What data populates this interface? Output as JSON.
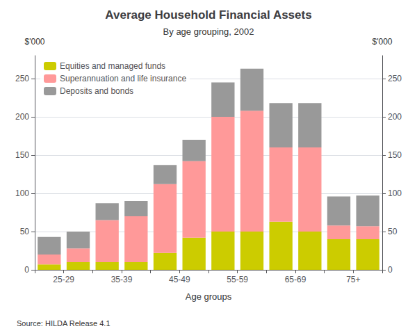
{
  "chart_data": {
    "type": "bar",
    "title": "Average Household Financial Assets",
    "subtitle": "By age grouping, 2002",
    "xlabel": "Age groups",
    "ylabel": "$'000",
    "y2label": "$'000",
    "annotations": [
      "Source: HILDA Release 4.1"
    ],
    "categories": [
      "25-29",
      null,
      "35-39",
      null,
      "45-49",
      null,
      "55-59",
      null,
      "65-69",
      null,
      "75+",
      null
    ],
    "series": [
      {
        "name": "Equities and managed funds",
        "color": "#cccc00",
        "values": [
          7,
          10,
          10,
          10,
          22,
          42,
          50,
          50,
          63,
          50,
          40,
          40
        ]
      },
      {
        "name": "Superannuation and life insurance",
        "color": "#ff9999",
        "values": [
          13,
          18,
          55,
          60,
          90,
          100,
          150,
          158,
          97,
          110,
          18,
          17
        ]
      },
      {
        "name": "Deposits and bonds",
        "color": "#999999",
        "values": [
          23,
          22,
          22,
          20,
          25,
          28,
          45,
          55,
          58,
          58,
          38,
          40
        ]
      }
    ],
    "stacked": true,
    "ylim": [
      0,
      280
    ],
    "yticks": [
      0,
      50,
      100,
      150,
      200,
      250
    ],
    "y2lim": [
      0,
      280
    ],
    "y2ticks": [
      0,
      50,
      100,
      150,
      200,
      250
    ],
    "grid": true,
    "legend": "upper left"
  }
}
